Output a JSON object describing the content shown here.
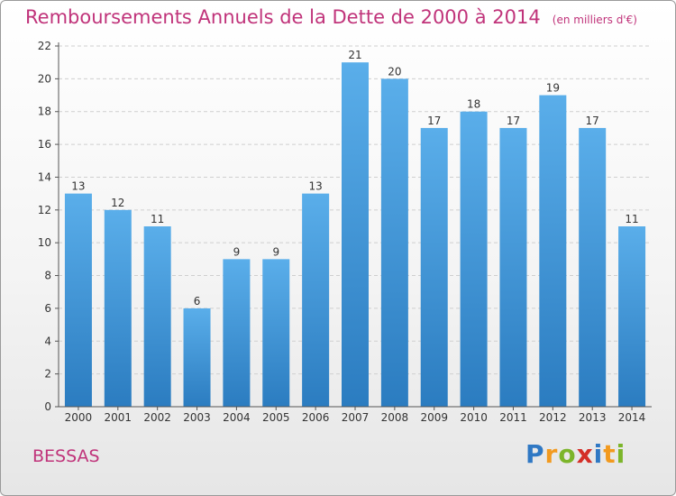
{
  "title": "Remboursements Annuels de la Dette de 2000 à 2014",
  "unit_note": "(en milliers d'€)",
  "location": "BESSAS",
  "logo": {
    "text": "Proxiti",
    "letters": [
      {
        "ch": "P",
        "color": "#2f78c4"
      },
      {
        "ch": "r",
        "color": "#f29a1f"
      },
      {
        "ch": "o",
        "color": "#7cb52a"
      },
      {
        "ch": "x",
        "color": "#d42e27"
      },
      {
        "ch": "i",
        "color": "#2f78c4"
      },
      {
        "ch": "t",
        "color": "#f29a1f"
      },
      {
        "ch": "i",
        "color": "#7cb52a"
      }
    ]
  },
  "chart_data": {
    "type": "bar",
    "categories": [
      "2000",
      "2001",
      "2002",
      "2003",
      "2004",
      "2005",
      "2006",
      "2007",
      "2008",
      "2009",
      "2010",
      "2011",
      "2012",
      "2013",
      "2014"
    ],
    "values": [
      13,
      12,
      11,
      6,
      9,
      9,
      13,
      21,
      20,
      17,
      18,
      17,
      19,
      17,
      11
    ],
    "ylim": [
      0,
      22
    ],
    "yticks": [
      0,
      2,
      4,
      6,
      8,
      10,
      12,
      14,
      16,
      18,
      20,
      22
    ],
    "grid": true,
    "bar_color_top": "#5aaeea",
    "bar_color_bottom": "#2b7cc0",
    "title": "Remboursements Annuels de la Dette de 2000 à 2014",
    "xlabel": "",
    "ylabel": ""
  }
}
